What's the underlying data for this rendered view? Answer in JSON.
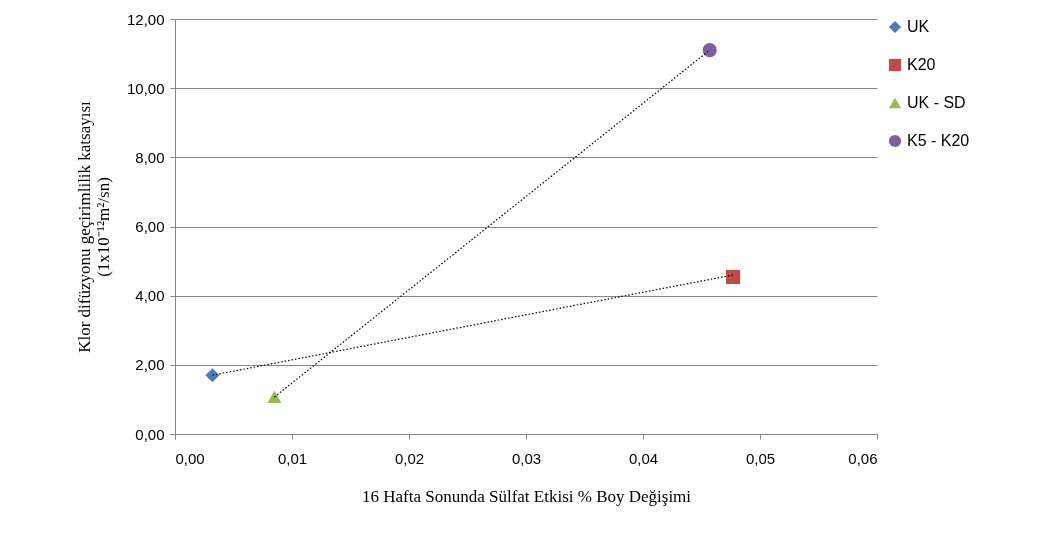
{
  "chart_data": {
    "type": "scatter",
    "xlabel": "16 Hafta Sonunda Sülfat Etkisi % Boy Değişimi",
    "ylabel": [
      "Klor difüzyonu geçirimlilik katsayısı",
      "(1x10⁻¹²m²/sn)"
    ],
    "xlim": [
      0,
      0.06
    ],
    "xticks": [
      {
        "value": 0,
        "label": "0,00"
      },
      {
        "value": 0.01,
        "label": "0,01"
      },
      {
        "value": 0.02,
        "label": "0,02"
      },
      {
        "value": 0.03,
        "label": "0,03"
      },
      {
        "value": 0.04,
        "label": "0,04"
      },
      {
        "value": 0.05,
        "label": "0,05"
      },
      {
        "value": 0.06,
        "label": "0,06"
      }
    ],
    "ylim": [
      0,
      12
    ],
    "yticks": [
      {
        "value": 0,
        "label": "0,00"
      },
      {
        "value": 2,
        "label": "2,00"
      },
      {
        "value": 4,
        "label": "4,00"
      },
      {
        "value": 6,
        "label": "6,00"
      },
      {
        "value": 8,
        "label": "8,00"
      },
      {
        "value": 10,
        "label": "10,00"
      },
      {
        "value": 12,
        "label": "12,00"
      }
    ],
    "grid": "y",
    "legend": "right",
    "series": [
      {
        "name": "UK",
        "color": "#4a7ebb",
        "marker": "diamond",
        "x": [
          0.0032
        ],
        "values": [
          1.7
        ]
      },
      {
        "name": "K20",
        "color": "#be4b48",
        "marker": "square",
        "x": [
          0.0477
        ],
        "values": [
          4.54
        ]
      },
      {
        "name": "UK - SD",
        "color": "#98b954",
        "marker": "triangle",
        "x": [
          0.0085
        ],
        "values": [
          1.07
        ]
      },
      {
        "name": "K5 - K20",
        "color": "#7d60a0",
        "marker": "circle",
        "x": [
          0.0457
        ],
        "values": [
          11.1
        ]
      },
      {
        "type": "line",
        "color": "#000000",
        "line_style": "dotted",
        "x": [
          0.0032,
          0.0477
        ],
        "values": [
          1.7,
          4.6
        ]
      },
      {
        "type": "line",
        "color": "#000000",
        "line_style": "dotted",
        "x": [
          0.0085,
          0.0457
        ],
        "values": [
          1.07,
          11.1
        ]
      }
    ]
  }
}
